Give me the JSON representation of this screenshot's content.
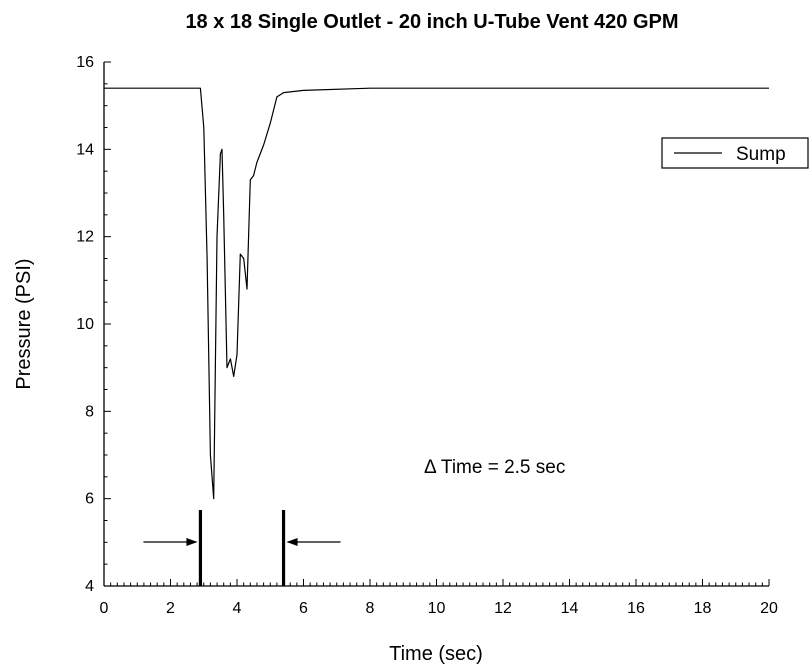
{
  "chart_data": {
    "type": "line",
    "title": "18 x 18 Single Outlet - 20  inch U-Tube Vent 420 GPM",
    "xlabel": "Time (sec)",
    "ylabel": "Pressure (PSI)",
    "xlim": [
      0,
      20
    ],
    "ylim": [
      4,
      16
    ],
    "x_ticks": [
      "0",
      "2",
      "4",
      "6",
      "8",
      "10",
      "12",
      "14",
      "16",
      "18",
      "20"
    ],
    "y_ticks": [
      "4",
      "6",
      "8",
      "10",
      "12",
      "14",
      "16"
    ],
    "grid": false,
    "legend": {
      "position": "top-right",
      "entries": [
        "Sump"
      ]
    },
    "series": [
      {
        "name": "Sump",
        "color": "#000000",
        "x": [
          0,
          1,
          2,
          2.9,
          3.0,
          3.1,
          3.2,
          3.3,
          3.4,
          3.5,
          3.55,
          3.6,
          3.7,
          3.8,
          3.9,
          4.0,
          4.1,
          4.2,
          4.3,
          4.4,
          4.5,
          4.6,
          4.8,
          5.0,
          5.2,
          5.4,
          6,
          8,
          10,
          12,
          14,
          16,
          18,
          20
        ],
        "y": [
          15.4,
          15.4,
          15.4,
          15.4,
          14.5,
          11.5,
          7.0,
          6.0,
          12.0,
          13.9,
          14.0,
          12.5,
          9.0,
          9.2,
          8.8,
          9.3,
          11.6,
          11.5,
          10.8,
          13.3,
          13.4,
          13.7,
          14.1,
          14.6,
          15.2,
          15.3,
          15.35,
          15.4,
          15.4,
          15.4,
          15.4,
          15.4,
          15.4,
          15.4
        ]
      }
    ],
    "annotations": [
      {
        "text": "Δ Time = 2.5 sec"
      }
    ],
    "markers": [
      {
        "x": 2.9,
        "direction": "right"
      },
      {
        "x": 5.4,
        "direction": "left"
      }
    ]
  }
}
